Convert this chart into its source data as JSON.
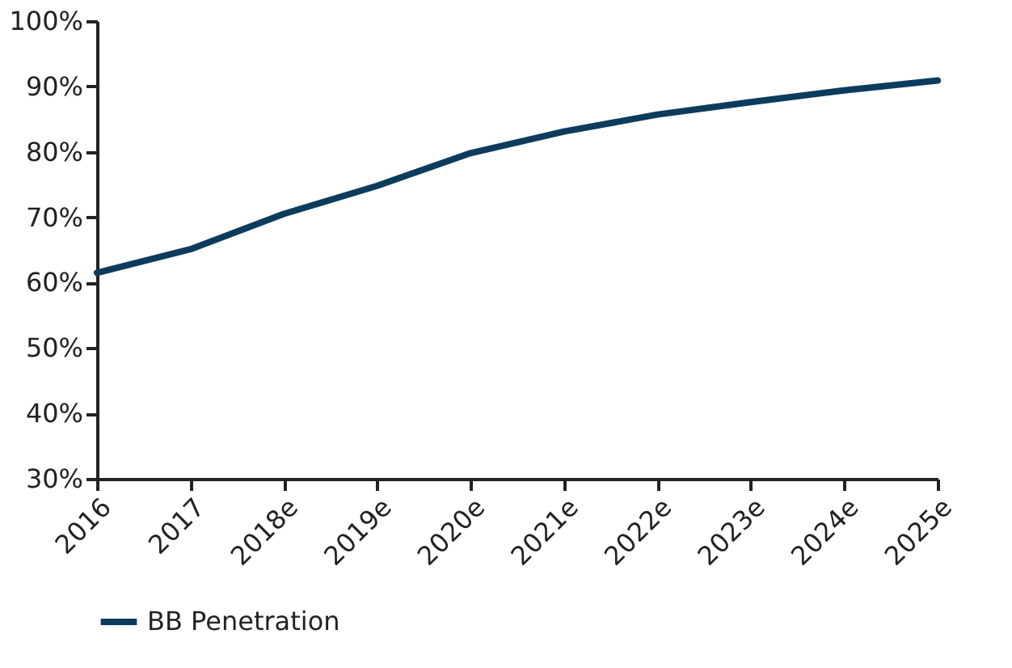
{
  "chart_data": {
    "type": "line",
    "categories": [
      "2016",
      "2017",
      "2018e",
      "2019e",
      "2020e",
      "2021e",
      "2022e",
      "2023e",
      "2024e",
      "2025e"
    ],
    "series": [
      {
        "name": "BB Penetration",
        "color": "#0b3c5d",
        "values": [
          61.5,
          65.1,
          70.5,
          74.8,
          79.8,
          83.1,
          85.7,
          87.6,
          89.4,
          90.9
        ]
      }
    ],
    "ylim": [
      30,
      100
    ],
    "yticks": [
      {
        "value": 30,
        "label": "30%"
      },
      {
        "value": 40,
        "label": "40%"
      },
      {
        "value": 50,
        "label": "50%"
      },
      {
        "value": 60,
        "label": "60%"
      },
      {
        "value": 70,
        "label": "70%"
      },
      {
        "value": 80,
        "label": "80%"
      },
      {
        "value": 90,
        "label": "90%"
      },
      {
        "value": 100,
        "label": "100%"
      }
    ],
    "grid": false,
    "legend": "bottom",
    "marker": "none",
    "line_style": "solid"
  }
}
